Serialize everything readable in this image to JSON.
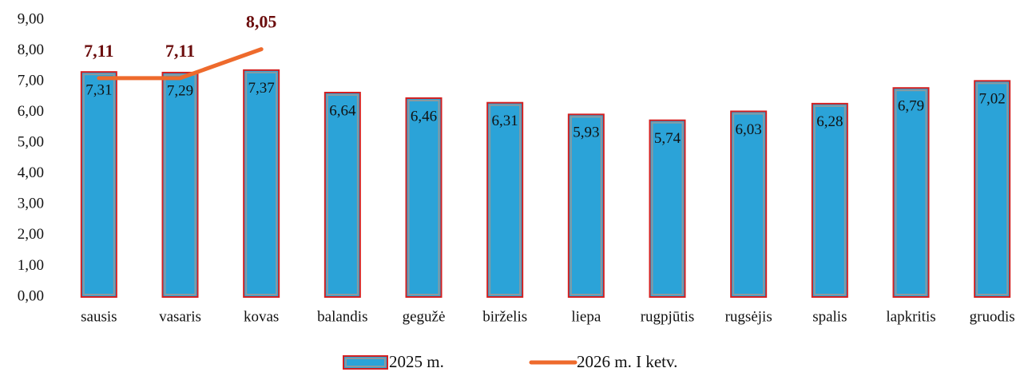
{
  "chart_data": {
    "type": "bar",
    "categories": [
      "sausis",
      "vasaris",
      "kovas",
      "balandis",
      "gegužė",
      "birželis",
      "liepa",
      "rugpjūtis",
      "rugsėjis",
      "spalis",
      "lapkritis",
      "gruodis"
    ],
    "series": [
      {
        "name": "2025 m.",
        "type": "bar",
        "color": "#2ba3d8",
        "values": [
          7.31,
          7.29,
          7.37,
          6.64,
          6.46,
          6.31,
          5.93,
          5.74,
          6.03,
          6.28,
          6.79,
          7.02
        ],
        "value_labels": [
          "7,31",
          "7,29",
          "7,37",
          "6,64",
          "6,46",
          "6,31",
          "5,93",
          "5,74",
          "6,03",
          "6,28",
          "6,79",
          "7,02"
        ]
      },
      {
        "name": "2026 m. I ketv.",
        "type": "line",
        "color": "#ee6a2c",
        "values": [
          7.11,
          7.11,
          8.05,
          null,
          null,
          null,
          null,
          null,
          null,
          null,
          null,
          null
        ],
        "value_labels": [
          "7,11",
          "7,11",
          "8,05",
          null,
          null,
          null,
          null,
          null,
          null,
          null,
          null,
          null
        ]
      }
    ],
    "ylim": [
      0,
      9
    ],
    "yticks": [
      {
        "value": 0,
        "label": "0,00"
      },
      {
        "value": 1,
        "label": "1,00"
      },
      {
        "value": 2,
        "label": "2,00"
      },
      {
        "value": 3,
        "label": "3,00"
      },
      {
        "value": 4,
        "label": "4,00"
      },
      {
        "value": 5,
        "label": "5,00"
      },
      {
        "value": 6,
        "label": "6,00"
      },
      {
        "value": 7,
        "label": "7,00"
      },
      {
        "value": 8,
        "label": "8,00"
      },
      {
        "value": 9,
        "label": "9,00"
      }
    ],
    "grid": false,
    "legend": "bottom"
  }
}
